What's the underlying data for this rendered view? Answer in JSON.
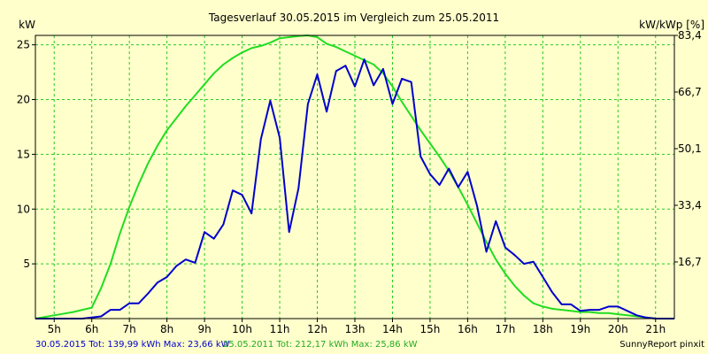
{
  "colors": {
    "background": "#FFFFCC",
    "plot_bg": "#FFFFCC",
    "grid": "#22CC22",
    "series_2015": "#0000CC",
    "series_2011": "#22DD22",
    "text": "#000000",
    "footer_2015": "#0000CC",
    "footer_2011": "#22AA22"
  },
  "chart_data": {
    "type": "line",
    "title": "Tagesverlauf 30.05.2015 im Vergleich zum 25.05.2011",
    "ylabel": "kW",
    "ylabel_right": "kW/kWp [%]",
    "xlim": [
      4.5,
      21.5
    ],
    "ylim": [
      0,
      25.86
    ],
    "grid": true,
    "x_ticks": [
      5,
      6,
      7,
      8,
      9,
      10,
      11,
      12,
      13,
      14,
      15,
      16,
      17,
      18,
      19,
      20,
      21
    ],
    "x_tick_labels": [
      "5h",
      "6h",
      "7h",
      "8h",
      "9h",
      "10h",
      "11h",
      "12h",
      "13h",
      "14h",
      "15h",
      "16h",
      "17h",
      "18h",
      "19h",
      "20h",
      "21h"
    ],
    "y_ticks": [
      5,
      10,
      15,
      20,
      25
    ],
    "y_tick_labels": [
      "5",
      "10",
      "15",
      "20",
      "25"
    ],
    "y_right_ticks": [
      5.172,
      10.344,
      15.516,
      20.688,
      25.86
    ],
    "y_right_tick_labels": [
      "16,7",
      "33,4",
      "50,1",
      "66,7",
      "83,4"
    ],
    "series": [
      {
        "name": "30.05.2015",
        "color_key": "series_2015",
        "x": [
          4.5,
          5.0,
          5.5,
          5.75,
          6.0,
          6.25,
          6.5,
          6.75,
          7.0,
          7.25,
          7.5,
          7.75,
          8.0,
          8.25,
          8.5,
          8.75,
          9.0,
          9.25,
          9.5,
          9.75,
          10.0,
          10.25,
          10.5,
          10.75,
          11.0,
          11.25,
          11.5,
          11.75,
          12.0,
          12.25,
          12.5,
          12.75,
          13.0,
          13.25,
          13.5,
          13.75,
          14.0,
          14.25,
          14.5,
          14.75,
          15.0,
          15.25,
          15.5,
          15.75,
          16.0,
          16.25,
          16.5,
          16.75,
          17.0,
          17.25,
          17.5,
          17.75,
          18.0,
          18.25,
          18.5,
          18.75,
          19.0,
          19.25,
          19.5,
          19.75,
          20.0,
          20.25,
          20.5,
          20.75,
          21.0,
          21.5
        ],
        "values": [
          0,
          0,
          0,
          0,
          0.1,
          0.2,
          0.8,
          0.8,
          1.4,
          1.4,
          2.3,
          3.3,
          3.8,
          4.8,
          5.4,
          5.1,
          7.9,
          7.3,
          8.6,
          11.7,
          11.3,
          9.6,
          16.4,
          19.9,
          16.5,
          7.9,
          11.9,
          19.6,
          22.3,
          18.9,
          22.6,
          23.1,
          21.2,
          23.66,
          21.3,
          22.8,
          19.6,
          21.9,
          21.6,
          14.8,
          13.2,
          12.2,
          13.7,
          12.0,
          13.4,
          10.3,
          6.1,
          8.9,
          6.5,
          5.8,
          5.0,
          5.2,
          3.8,
          2.4,
          1.3,
          1.3,
          0.7,
          0.8,
          0.8,
          1.1,
          1.1,
          0.7,
          0.3,
          0.1,
          0,
          0
        ]
      },
      {
        "name": "25.05.2011",
        "color_key": "series_2011",
        "x": [
          4.5,
          5.0,
          5.5,
          6.0,
          6.25,
          6.5,
          6.75,
          7.0,
          7.25,
          7.5,
          7.75,
          8.0,
          8.25,
          8.5,
          8.75,
          9.0,
          9.25,
          9.5,
          9.75,
          10.0,
          10.25,
          10.5,
          10.75,
          11.0,
          11.25,
          11.5,
          11.75,
          12.0,
          12.25,
          12.5,
          12.75,
          13.0,
          13.25,
          13.5,
          13.75,
          14.0,
          14.25,
          14.5,
          14.75,
          15.0,
          15.25,
          15.5,
          15.75,
          16.0,
          16.25,
          16.5,
          16.75,
          17.0,
          17.25,
          17.5,
          17.75,
          18.0,
          18.25,
          18.5,
          18.75,
          19.0,
          19.25,
          19.5,
          19.75,
          20.0,
          20.25,
          20.5,
          20.75,
          21.0,
          21.5
        ],
        "values": [
          0,
          0.3,
          0.6,
          1.0,
          2.8,
          5.0,
          7.8,
          10.2,
          12.3,
          14.2,
          15.8,
          17.2,
          18.3,
          19.4,
          20.4,
          21.4,
          22.4,
          23.2,
          23.8,
          24.3,
          24.7,
          24.9,
          25.2,
          25.6,
          25.7,
          25.8,
          25.86,
          25.7,
          25.1,
          24.8,
          24.4,
          24.0,
          23.6,
          23.2,
          22.4,
          21.2,
          19.8,
          18.5,
          17.2,
          16.0,
          14.8,
          13.5,
          12.0,
          10.4,
          8.7,
          7.0,
          5.4,
          4.1,
          3.0,
          2.1,
          1.4,
          1.1,
          0.9,
          0.8,
          0.7,
          0.6,
          0.6,
          0.5,
          0.5,
          0.4,
          0.3,
          0.2,
          0.1,
          0,
          0
        ]
      }
    ]
  },
  "footer": {
    "s2015_text": "30.05.2015 Tot: 139,99 kWh Max: 23,66 kW",
    "s2011_text": "25.05.2011 Tot: 212,17 kWh Max: 25,86 kW",
    "credit": "SunnyReport pinxit"
  }
}
